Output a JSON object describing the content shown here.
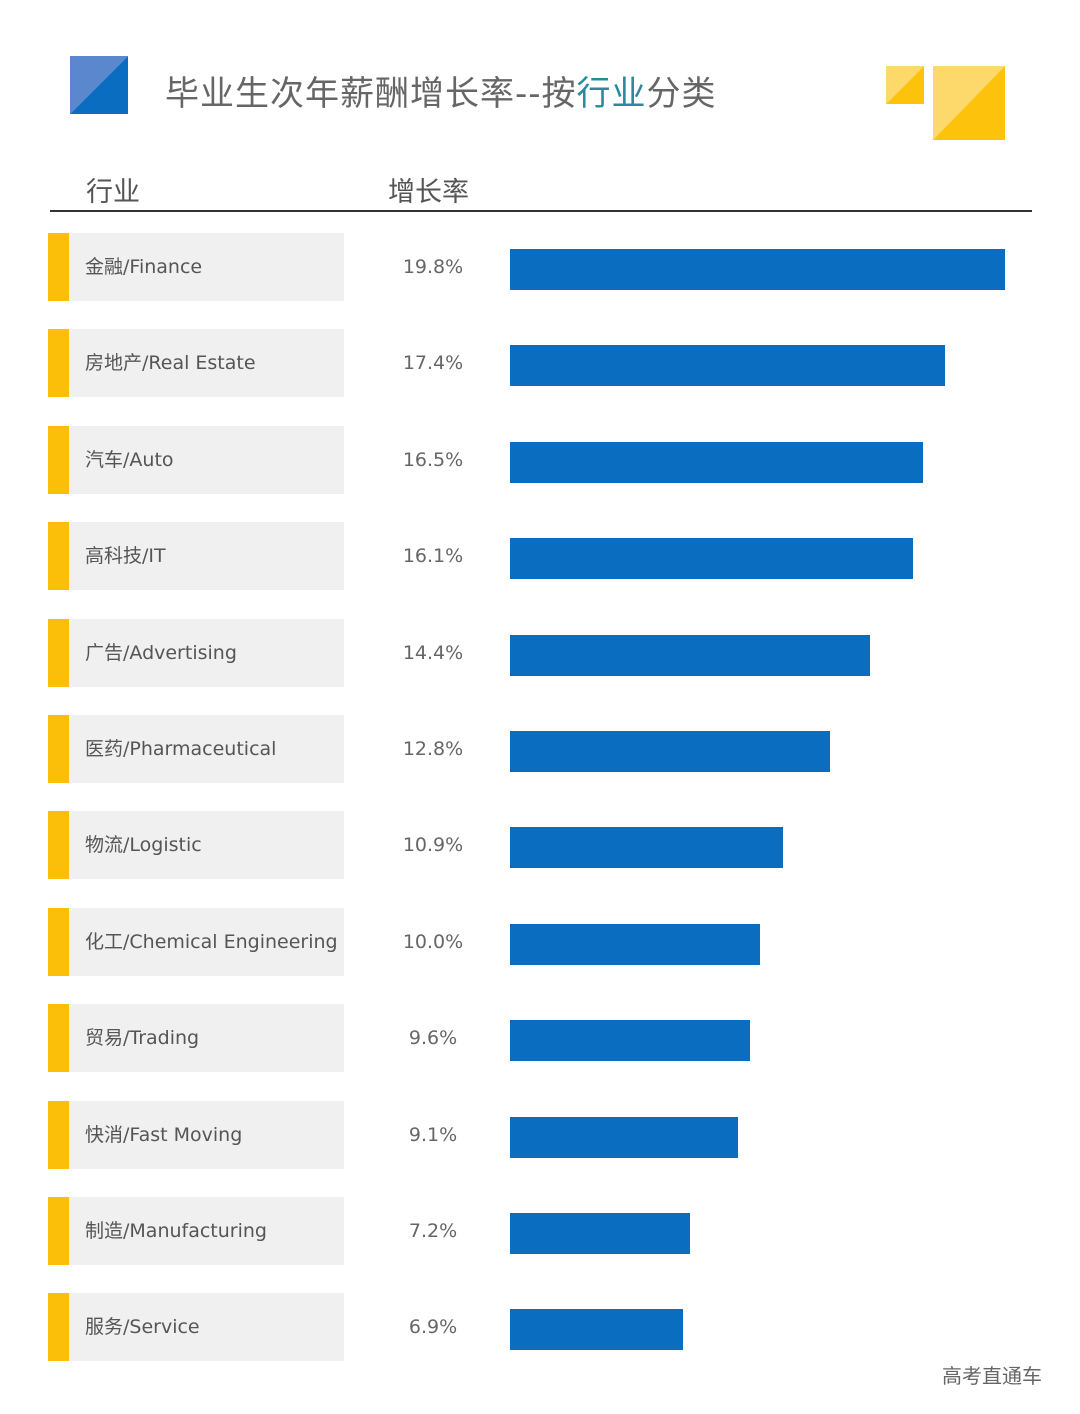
{
  "title": {
    "prefix": "毕业生次年薪酬增长率--按",
    "highlight": "行业",
    "suffix": "分类"
  },
  "headers": {
    "industry": "行业",
    "rate": "增长率"
  },
  "colors": {
    "bar": "#0a6dbf",
    "accent": "#fbbf0a",
    "label_bg": "#f0f0f0",
    "title_highlight": "#2a8a9c",
    "logo_blue_light": "#5b87cf",
    "logo_blue_dark": "#0a6dbf",
    "deco_yellow_light": "#fdd86a",
    "deco_yellow_dark": "#fcc20c"
  },
  "rows": [
    {
      "label": "金融/Finance",
      "value_label": "19.8%",
      "value": 19.8
    },
    {
      "label": "房地产/Real  Estate",
      "value_label": "17.4%",
      "value": 17.4
    },
    {
      "label": "汽车/Auto",
      "value_label": "16.5%",
      "value": 16.5
    },
    {
      "label": "高科技/IT",
      "value_label": "16.1%",
      "value": 16.1
    },
    {
      "label": "广告/Advertising",
      "value_label": "14.4%",
      "value": 14.4
    },
    {
      "label": "医药/Pharmaceutical",
      "value_label": "12.8%",
      "value": 12.8
    },
    {
      "label": "物流/Logistic",
      "value_label": "10.9%",
      "value": 10.9
    },
    {
      "label": "化工/Chemical  Engineering",
      "value_label": "10.0%",
      "value": 10.0
    },
    {
      "label": "贸易/Trading",
      "value_label": "9.6%",
      "value": 9.6
    },
    {
      "label": "快消/Fast  Moving",
      "value_label": "9.1%",
      "value": 9.1
    },
    {
      "label": "制造/Manufacturing",
      "value_label": "7.2%",
      "value": 7.2
    },
    {
      "label": "服务/Service",
      "value_label": "6.9%",
      "value": 6.9
    }
  ],
  "watermark": "高考直通车",
  "chart_data": {
    "type": "bar",
    "orientation": "horizontal",
    "title": "毕业生次年薪酬增长率--按行业分类",
    "xlabel": "增长率",
    "ylabel": "行业",
    "categories": [
      "金融/Finance",
      "房地产/Real Estate",
      "汽车/Auto",
      "高科技/IT",
      "广告/Advertising",
      "医药/Pharmaceutical",
      "物流/Logistic",
      "化工/Chemical Engineering",
      "贸易/Trading",
      "快消/Fast Moving",
      "制造/Manufacturing",
      "服务/Service"
    ],
    "values": [
      19.8,
      17.4,
      16.5,
      16.1,
      14.4,
      12.8,
      10.9,
      10.0,
      9.6,
      9.1,
      7.2,
      6.9
    ],
    "unit": "%",
    "grid": false,
    "legend": "none",
    "xlim": [
      0,
      19.8
    ]
  }
}
